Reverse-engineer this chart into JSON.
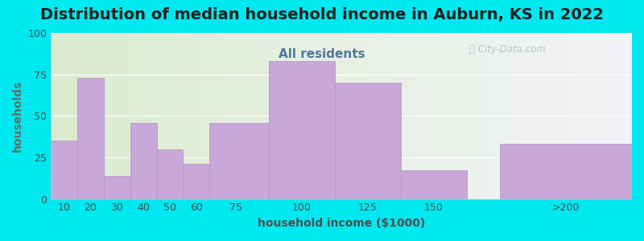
{
  "title": "Distribution of median household income in Auburn, KS in 2022",
  "subtitle": "All residents",
  "xlabel": "household income ($1000)",
  "ylabel": "households",
  "bar_lefts": [
    5,
    15,
    25,
    35,
    45,
    55,
    65,
    87.5,
    112.5,
    137.5,
    175
  ],
  "bar_widths": [
    10,
    10,
    10,
    10,
    10,
    10,
    22.5,
    25,
    25,
    25,
    50
  ],
  "bar_heights": [
    35,
    73,
    14,
    46,
    30,
    21,
    46,
    83,
    70,
    17,
    33
  ],
  "tick_positions": [
    10,
    20,
    30,
    40,
    50,
    60,
    75,
    100,
    125,
    150,
    200
  ],
  "tick_labels": [
    "10",
    "20",
    "30",
    "40",
    "50",
    "60",
    "75",
    "100",
    "125",
    "150",
    ">200"
  ],
  "bar_color": "#c8a8d8",
  "bar_edgecolor": "#b898c8",
  "ylim": [
    0,
    100
  ],
  "xlim": [
    5,
    225
  ],
  "yticks": [
    0,
    25,
    50,
    75,
    100
  ],
  "bg_outer": "#00e8f0",
  "title_fontsize": 14,
  "subtitle_fontsize": 11,
  "subtitle_color": "#507898",
  "axis_label_fontsize": 10,
  "tick_fontsize": 9,
  "ylabel_color": "#607060",
  "xlabel_color": "#505050"
}
